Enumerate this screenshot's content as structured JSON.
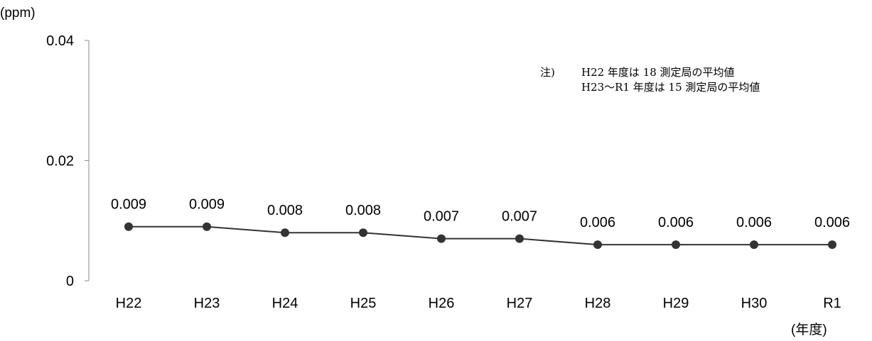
{
  "chart_data": {
    "type": "line",
    "ylabel": "(ppm)",
    "xlabel": "(年度)",
    "categories": [
      "H22",
      "H23",
      "H24",
      "H25",
      "H26",
      "H27",
      "H28",
      "H29",
      "H30",
      "R1"
    ],
    "values": [
      0.009,
      0.009,
      0.008,
      0.008,
      0.007,
      0.007,
      0.006,
      0.006,
      0.006,
      0.006
    ],
    "value_labels": [
      "0.009",
      "0.009",
      "0.008",
      "0.008",
      "0.007",
      "0.007",
      "0.006",
      "0.006",
      "0.006",
      "0.006"
    ],
    "ylim": [
      0,
      0.04
    ],
    "yticks": [
      0,
      0.02,
      0.04
    ],
    "ytick_labels": [
      "0",
      "0.02",
      "0.04"
    ],
    "grid": false,
    "legend": "none",
    "line_color": "#333333",
    "marker_color": "#333333",
    "note_prefix": "注)",
    "note_lines": [
      "H22 年度は 18 測定局の平均値",
      "H23〜R1 年度は 15 測定局の平均値"
    ]
  }
}
